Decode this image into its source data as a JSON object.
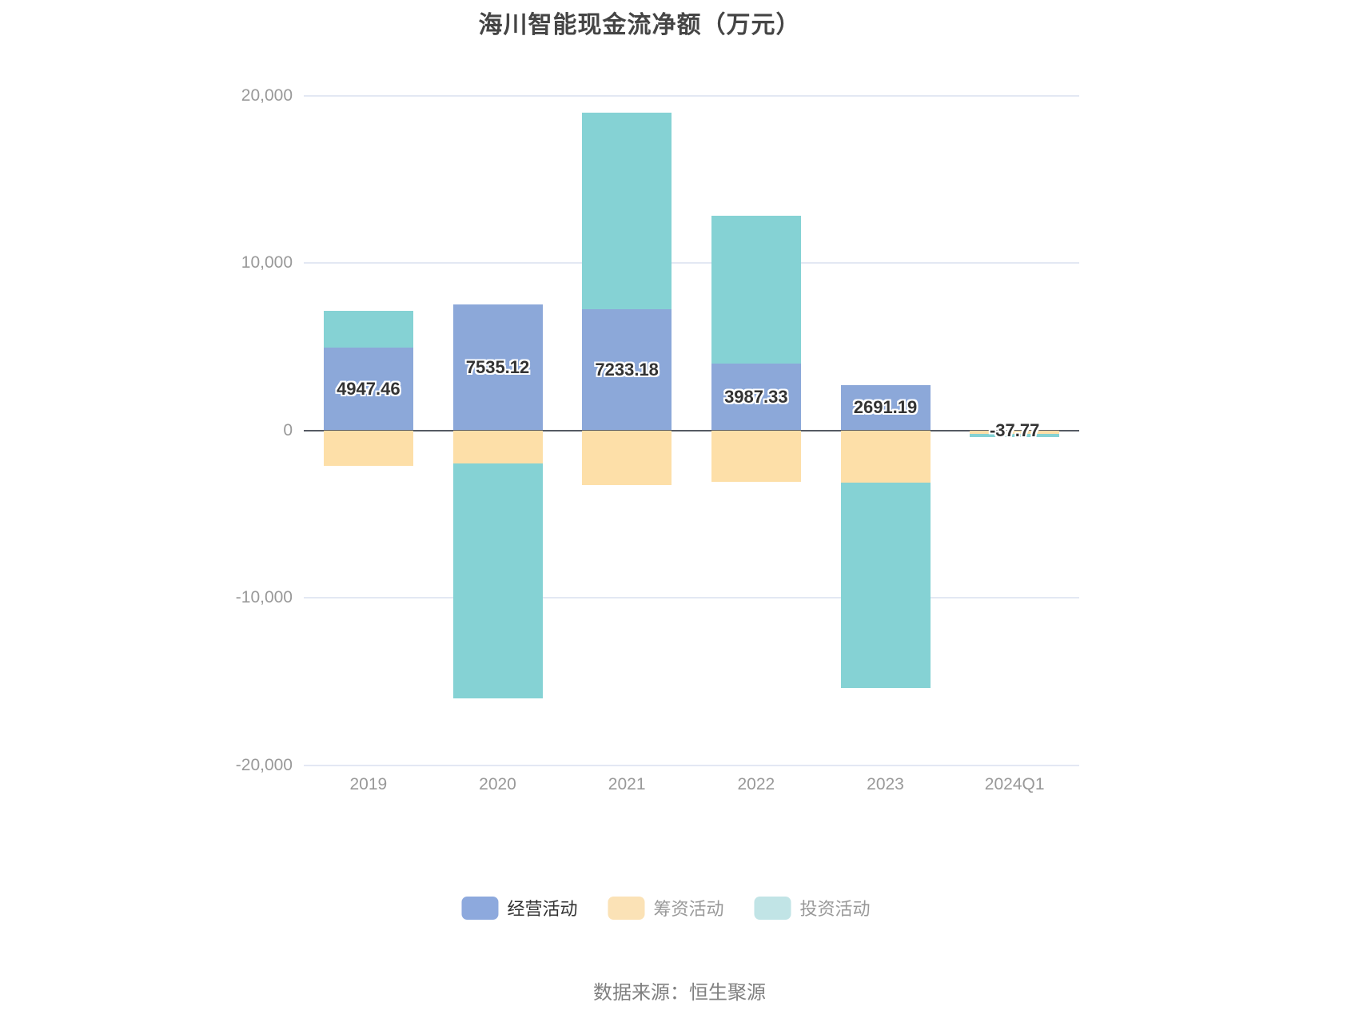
{
  "chart": {
    "title": "海川智能现金流净额（万元）",
    "source": "数据来源：恒生聚源"
  },
  "chart_data": {
    "type": "bar",
    "stacked": true,
    "title": "海川智能现金流净额（万元）",
    "categories": [
      "2019",
      "2020",
      "2021",
      "2022",
      "2023",
      "2024Q1"
    ],
    "series": [
      {
        "name": "经营活动",
        "color": "#8CA8D9",
        "legend_color": "#8DA9DD",
        "values": [
          4947.46,
          7535.12,
          7233.18,
          3987.33,
          2691.19,
          -37.77
        ]
      },
      {
        "name": "筹资活动",
        "color": "#FDDFA8",
        "legend_color": "#FBE2B6",
        "values": [
          -2130,
          -1990,
          -3270,
          -3090,
          -3130,
          -180
        ]
      },
      {
        "name": "投资活动",
        "color": "#85D2D4",
        "legend_color": "#C1E4E6",
        "values": [
          2200,
          -14040,
          11740,
          8810,
          -12260,
          -200
        ]
      }
    ],
    "data_labels": [
      "4947.46",
      "7535.12",
      "7233.18",
      "3987.33",
      "2691.19",
      "-37.77"
    ],
    "y_ticks": [
      {
        "label": "20,000",
        "value": 20000
      },
      {
        "label": "10,000",
        "value": 10000
      },
      {
        "label": "0",
        "value": 0
      },
      {
        "label": "-10,000",
        "value": -10000
      },
      {
        "label": "-20,000",
        "value": -20000
      }
    ],
    "ylim": [
      -20000,
      20000
    ],
    "grid": true,
    "legend_position": "bottom"
  }
}
